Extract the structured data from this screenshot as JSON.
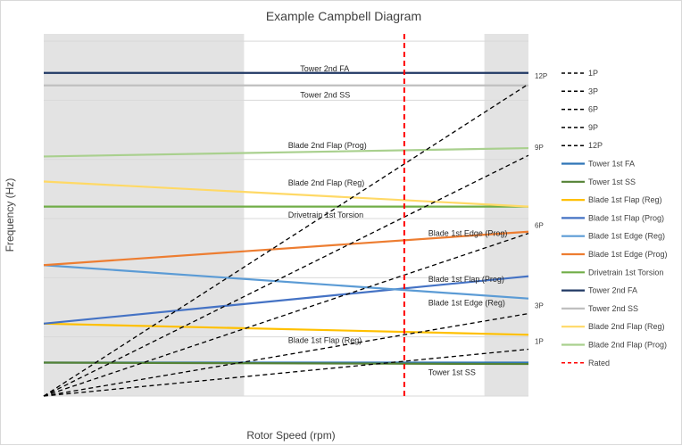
{
  "chart_data": {
    "type": "line",
    "title": "Example Campbell Diagram",
    "xlabel": "Rotor Speed (rpm)",
    "ylabel": "Frequency (Hz)",
    "xlim": [
      0,
      13
    ],
    "ylim": [
      0,
      1.3
    ],
    "grid": true,
    "legend_position": "right",
    "shaded_regions": [
      {
        "x_start": 0,
        "x_end": 5
      },
      {
        "x_start": 11,
        "x_end": 12.1
      }
    ],
    "rated_speed": 9,
    "series": [
      {
        "name": "1P",
        "color": "#000000",
        "dash": true,
        "points": [
          [
            0,
            0
          ],
          [
            12.1,
            0.168
          ]
        ],
        "end_label": "1P"
      },
      {
        "name": "3P",
        "color": "#000000",
        "dash": true,
        "points": [
          [
            0,
            0
          ],
          [
            12.1,
            0.296
          ]
        ],
        "end_label": "3P"
      },
      {
        "name": "6P",
        "color": "#000000",
        "dash": true,
        "points": [
          [
            0,
            0
          ],
          [
            12.1,
            0.584
          ]
        ],
        "end_label": "6P"
      },
      {
        "name": "9P",
        "color": "#000000",
        "dash": true,
        "points": [
          [
            0,
            0
          ],
          [
            12.1,
            0.864
          ]
        ],
        "end_label": "9P"
      },
      {
        "name": "12P",
        "color": "#000000",
        "dash": true,
        "points": [
          [
            0,
            0
          ],
          [
            12.1,
            1.12
          ]
        ],
        "end_label": "12P"
      },
      {
        "name": "Tower 1st FA",
        "color": "#2e75b6",
        "dash": false,
        "points": [
          [
            0,
            0.12
          ],
          [
            12.1,
            0.12
          ]
        ],
        "label": "",
        "label_pos": [
          0,
          0
        ]
      },
      {
        "name": "Tower 1st SS",
        "color": "#548235",
        "dash": false,
        "points": [
          [
            0,
            0.12
          ],
          [
            12.1,
            0.115
          ]
        ],
        "label": "Tower 1st SS",
        "label_pos": [
          9.6,
          0.085
        ]
      },
      {
        "name": "Blade 1st Flap (Reg)",
        "color": "#ffc000",
        "dash": false,
        "points": [
          [
            0,
            0.26
          ],
          [
            12.1,
            0.22
          ]
        ],
        "label": "Blade 1st Flap (Reg)",
        "label_pos": [
          6.1,
          0.2
        ]
      },
      {
        "name": "Blade 1st Flap (Prog)",
        "color": "#4472c4",
        "dash": false,
        "points": [
          [
            0,
            0.26
          ],
          [
            12.1,
            0.43
          ]
        ],
        "label": "Blade 1st Flap (Prog)",
        "label_pos": [
          9.6,
          0.42
        ]
      },
      {
        "name": "Blade 1st Edge (Reg)",
        "color": "#5b9bd5",
        "dash": false,
        "points": [
          [
            0,
            0.47
          ],
          [
            12.1,
            0.35
          ]
        ],
        "label": "Blade 1st Edge (Reg)",
        "label_pos": [
          9.6,
          0.335
        ]
      },
      {
        "name": "Blade 1st Edge (Prog)",
        "color": "#ed7d31",
        "dash": false,
        "points": [
          [
            0,
            0.47
          ],
          [
            12.1,
            0.59
          ]
        ],
        "label": "Blade 1st Edge (Prog)",
        "label_pos": [
          9.6,
          0.585
        ]
      },
      {
        "name": "Drivetrain 1st Torsion",
        "color": "#70ad47",
        "dash": false,
        "points": [
          [
            0,
            0.68
          ],
          [
            12.1,
            0.68
          ]
        ],
        "label": "Drivetrain 1st Torsion",
        "label_pos": [
          6.1,
          0.65
        ]
      },
      {
        "name": "Tower 2nd FA",
        "color": "#203864",
        "dash": false,
        "points": [
          [
            0,
            1.16
          ],
          [
            12.1,
            1.16
          ]
        ],
        "label": "Tower 2nd FA",
        "label_pos": [
          6.4,
          1.175
        ]
      },
      {
        "name": "Tower 2nd SS",
        "color": "#bfbfbf",
        "dash": false,
        "points": [
          [
            0,
            1.115
          ],
          [
            12.1,
            1.115
          ]
        ],
        "label": "Tower 2nd SS",
        "label_pos": [
          6.4,
          1.08
        ]
      },
      {
        "name": "Blade 2nd Flap (Reg)",
        "color": "#ffd966",
        "dash": false,
        "points": [
          [
            0,
            0.77
          ],
          [
            12.1,
            0.68
          ]
        ],
        "label": "Blade 2nd Flap (Reg)",
        "label_pos": [
          6.1,
          0.765
        ]
      },
      {
        "name": "Blade 2nd Flap (Prog)",
        "color": "#a9d08e",
        "dash": false,
        "points": [
          [
            0,
            0.86
          ],
          [
            12.1,
            0.89
          ]
        ],
        "label": "Blade 2nd Flap (Prog)",
        "label_pos": [
          6.1,
          0.9
        ]
      },
      {
        "name": "Rated",
        "color": "#ff0000",
        "dash": true,
        "points": [
          [
            9,
            0
          ],
          [
            9,
            1.3
          ]
        ],
        "label": "",
        "label_pos": [
          0,
          0
        ]
      }
    ]
  }
}
